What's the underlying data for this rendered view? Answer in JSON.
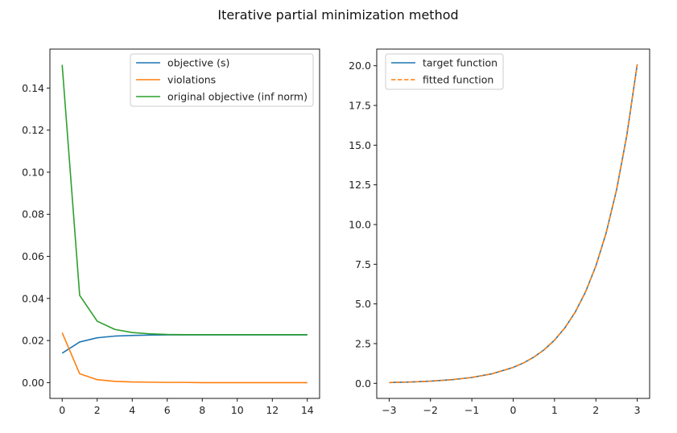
{
  "figure": {
    "title": "Iterative partial minimization method"
  },
  "chart_data": [
    {
      "type": "line",
      "title": "",
      "xlabel": "",
      "ylabel": "",
      "xlim": [
        -0.7,
        14.7
      ],
      "ylim": [
        -0.0075,
        0.1585
      ],
      "xticks": [
        0,
        2,
        4,
        6,
        8,
        10,
        12,
        14
      ],
      "xtick_labels": [
        "0",
        "2",
        "4",
        "6",
        "8",
        "10",
        "12",
        "14"
      ],
      "yticks": [
        0.0,
        0.02,
        0.04,
        0.06,
        0.08,
        0.1,
        0.12,
        0.14
      ],
      "ytick_labels": [
        "0.00",
        "0.02",
        "0.04",
        "0.06",
        "0.08",
        "0.10",
        "0.12",
        "0.14"
      ],
      "grid": false,
      "legend_position": "top-right",
      "x": [
        0,
        1,
        2,
        3,
        4,
        5,
        6,
        7,
        8,
        9,
        10,
        11,
        12,
        13,
        14
      ],
      "series": [
        {
          "name": "objective (s)",
          "color": "#1f77b4",
          "style": "solid",
          "values": [
            0.014,
            0.0193,
            0.0213,
            0.0221,
            0.0224,
            0.0226,
            0.0227,
            0.0227,
            0.0227,
            0.0227,
            0.0227,
            0.0227,
            0.0227,
            0.0227,
            0.0227
          ]
        },
        {
          "name": "violations",
          "color": "#ff7f0e",
          "style": "solid",
          "values": [
            0.0237,
            0.0042,
            0.0014,
            0.0006,
            0.0003,
            0.0002,
            0.0001,
            0.0001,
            0.0,
            0.0,
            0.0,
            0.0,
            0.0,
            0.0,
            0.0
          ]
        },
        {
          "name": "original objective (inf norm)",
          "color": "#2ca02c",
          "style": "solid",
          "values": [
            0.151,
            0.0415,
            0.0292,
            0.0253,
            0.0238,
            0.0232,
            0.0229,
            0.0228,
            0.0228,
            0.0228,
            0.0228,
            0.0228,
            0.0228,
            0.0228,
            0.0228
          ]
        }
      ]
    },
    {
      "type": "line",
      "title": "",
      "xlabel": "",
      "ylabel": "",
      "xlim": [
        -3.3,
        3.3
      ],
      "ylim": [
        -0.95,
        21.05
      ],
      "xticks": [
        -3,
        -2,
        -1,
        0,
        1,
        2,
        3
      ],
      "xtick_labels": [
        "−3",
        "−2",
        "−1",
        "0",
        "1",
        "2",
        "3"
      ],
      "yticks": [
        0.0,
        2.5,
        5.0,
        7.5,
        10.0,
        12.5,
        15.0,
        17.5,
        20.0
      ],
      "ytick_labels": [
        "0.0",
        "2.5",
        "5.0",
        "7.5",
        "10.0",
        "12.5",
        "15.0",
        "17.5",
        "20.0"
      ],
      "grid": false,
      "legend_position": "top-left",
      "x": [
        -3.0,
        -2.5,
        -2.0,
        -1.5,
        -1.0,
        -0.5,
        0.0,
        0.25,
        0.5,
        0.75,
        1.0,
        1.25,
        1.5,
        1.75,
        2.0,
        2.25,
        2.5,
        2.75,
        3.0
      ],
      "series": [
        {
          "name": "target function",
          "color": "#1f77b4",
          "style": "solid",
          "values": [
            0.05,
            0.082,
            0.135,
            0.223,
            0.368,
            0.607,
            1.0,
            1.284,
            1.649,
            2.117,
            2.718,
            3.49,
            4.482,
            5.755,
            7.389,
            9.488,
            12.182,
            15.643,
            20.086
          ]
        },
        {
          "name": "fitted function",
          "color": "#ff7f0e",
          "style": "dashed",
          "values": [
            0.05,
            0.082,
            0.135,
            0.223,
            0.368,
            0.607,
            1.0,
            1.284,
            1.649,
            2.117,
            2.718,
            3.49,
            4.482,
            5.755,
            7.389,
            9.488,
            12.182,
            15.643,
            20.086
          ]
        }
      ]
    }
  ]
}
